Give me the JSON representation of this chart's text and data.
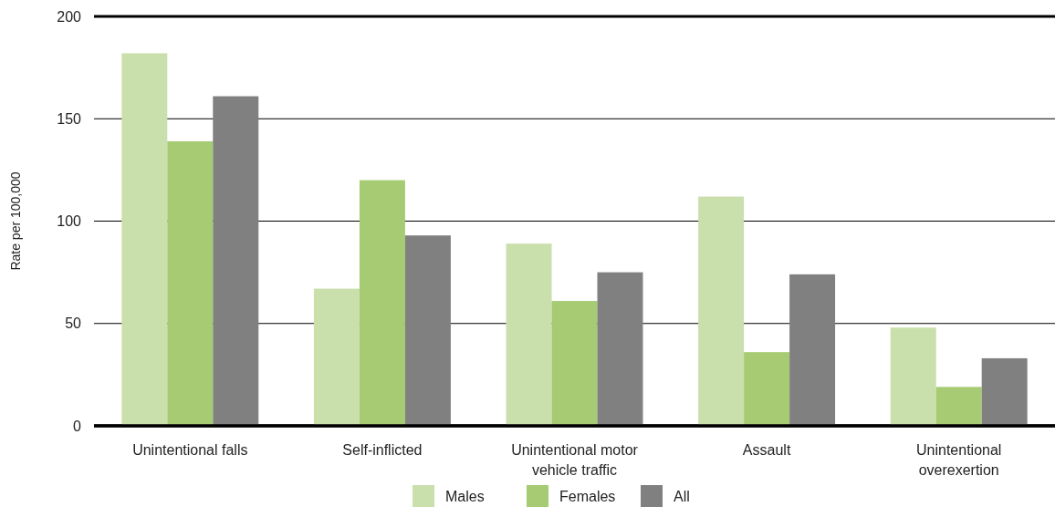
{
  "chart_data": {
    "type": "bar",
    "ylabel": "Rate per 100,000",
    "categories": [
      "Unintentional falls",
      "Self-inflicted",
      "Unintentional motor vehicle traffic",
      "Assault",
      "Unintentional overexertion"
    ],
    "series": [
      {
        "name": "Males",
        "color": "#c9e0ad",
        "values": [
          182,
          67,
          89,
          112,
          48
        ]
      },
      {
        "name": "Females",
        "color": "#a6cb72",
        "values": [
          139,
          120,
          61,
          36,
          19
        ]
      },
      {
        "name": "All",
        "color": "#808080",
        "values": [
          161,
          93,
          75,
          74,
          33
        ]
      }
    ],
    "ylim": [
      0,
      200
    ],
    "yticks": [
      0,
      50,
      100,
      150,
      200
    ],
    "grid": "y",
    "legend": "bottom"
  }
}
